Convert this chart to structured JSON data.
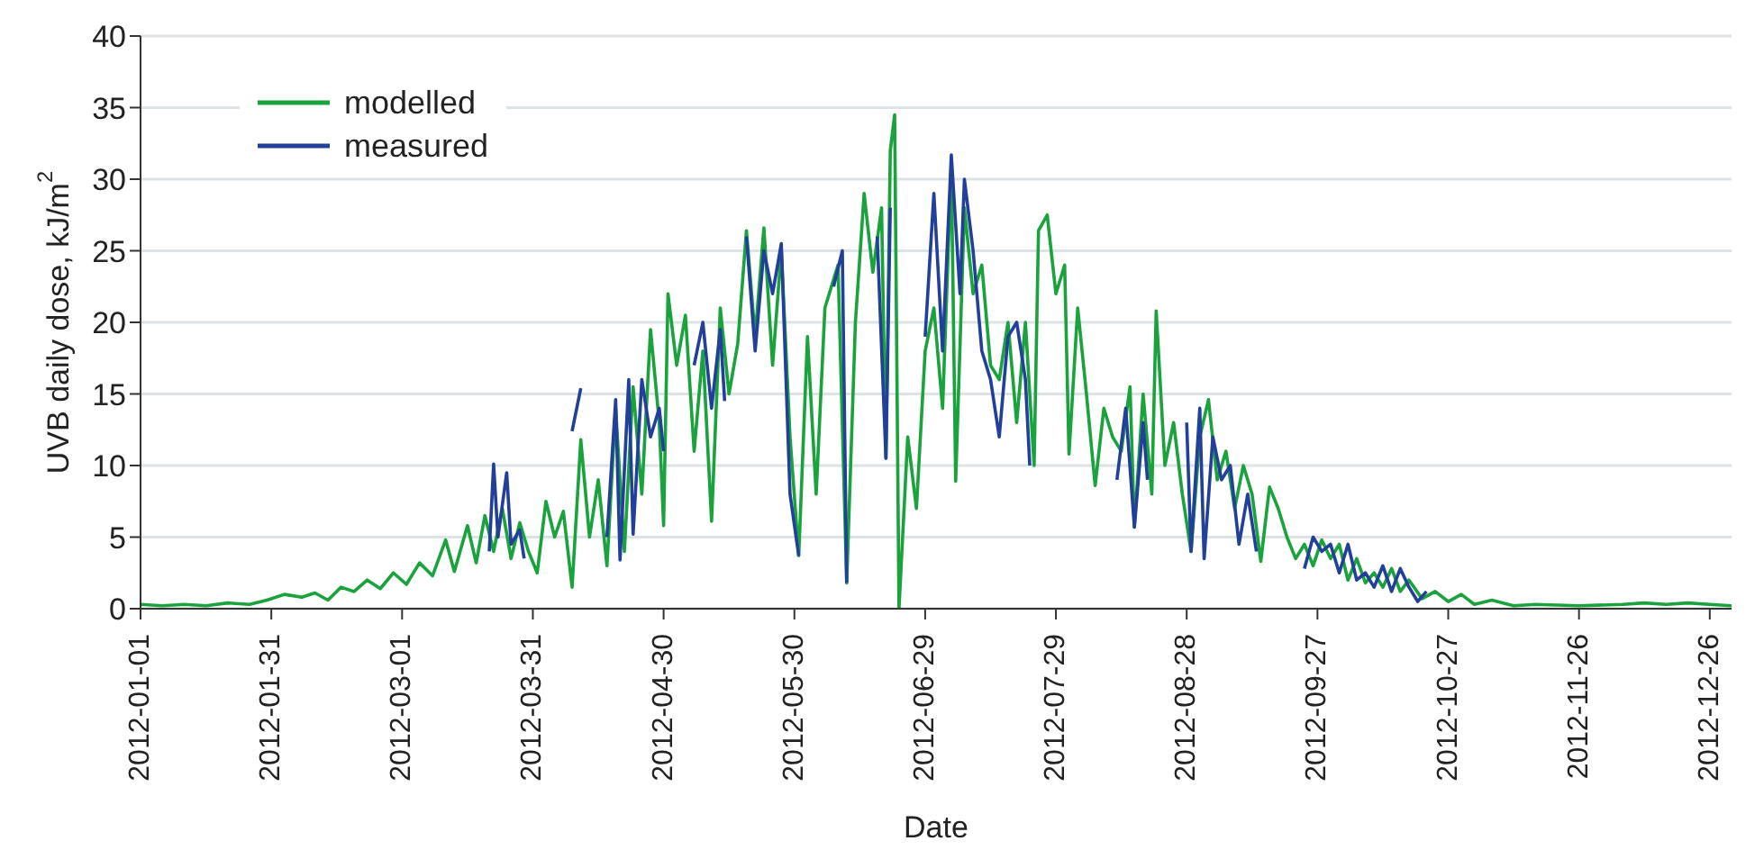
{
  "chart_data": {
    "type": "line",
    "xlabel": "Date",
    "ylabel": "UVB daily dose, kJ/m$^{2}$",
    "xlim": [
      "2012-01-01",
      "2012-12-31"
    ],
    "xticks": [
      "2012-01-01",
      "2012-01-31",
      "2012-03-01",
      "2012-03-31",
      "2012-04-30",
      "2012-05-30",
      "2012-06-29",
      "2012-07-29",
      "2012-08-28",
      "2012-09-27",
      "2012-10-27",
      "2012-11-26",
      "2012-12-26"
    ],
    "ylim": [
      0,
      40
    ],
    "yticks": [
      0,
      5,
      10,
      15,
      20,
      25,
      30,
      35,
      40
    ],
    "grid": "y",
    "legend": "top left",
    "marker": "none",
    "line_style": "solid",
    "series": [
      {
        "name": "modelled",
        "color": "#1aa33c",
        "x": [
          "2012-01-01",
          "2012-01-06",
          "2012-01-11",
          "2012-01-16",
          "2012-01-21",
          "2012-01-26",
          "2012-01-30",
          "2012-02-03",
          "2012-02-07",
          "2012-02-10",
          "2012-02-13",
          "2012-02-16",
          "2012-02-19",
          "2012-02-22",
          "2012-02-25",
          "2012-02-28",
          "2012-03-02",
          "2012-03-05",
          "2012-03-08",
          "2012-03-11",
          "2012-03-13",
          "2012-03-16",
          "2012-03-18",
          "2012-03-20",
          "2012-03-22",
          "2012-03-24",
          "2012-03-26",
          "2012-03-28",
          "2012-03-30",
          "2012-04-01",
          "2012-04-03",
          "2012-04-05",
          "2012-04-07",
          "2012-04-09",
          "2012-04-11",
          "2012-04-13",
          "2012-04-15",
          "2012-04-17",
          "2012-04-19",
          "2012-04-21",
          "2012-04-23",
          "2012-04-25",
          "2012-04-27",
          "2012-04-29",
          "2012-04-30",
          "2012-05-01",
          "2012-05-03",
          "2012-05-05",
          "2012-05-07",
          "2012-05-09",
          "2012-05-11",
          "2012-05-13",
          "2012-05-15",
          "2012-05-17",
          "2012-05-19",
          "2012-05-21",
          "2012-05-23",
          "2012-05-25",
          "2012-05-27",
          "2012-05-29",
          "2012-05-31",
          "2012-06-02",
          "2012-06-04",
          "2012-06-06",
          "2012-06-08",
          "2012-06-09",
          "2012-06-11",
          "2012-06-13",
          "2012-06-15",
          "2012-06-17",
          "2012-06-19",
          "2012-06-20",
          "2012-06-21",
          "2012-06-22",
          "2012-06-23",
          "2012-06-25",
          "2012-06-27",
          "2012-06-29",
          "2012-07-01",
          "2012-07-03",
          "2012-07-05",
          "2012-07-06",
          "2012-07-08",
          "2012-07-10",
          "2012-07-12",
          "2012-07-14",
          "2012-07-16",
          "2012-07-18",
          "2012-07-20",
          "2012-07-22",
          "2012-07-24",
          "2012-07-25",
          "2012-07-27",
          "2012-07-29",
          "2012-07-31",
          "2012-08-01",
          "2012-08-03",
          "2012-08-05",
          "2012-08-07",
          "2012-08-09",
          "2012-08-11",
          "2012-08-13",
          "2012-08-15",
          "2012-08-16",
          "2012-08-18",
          "2012-08-20",
          "2012-08-21",
          "2012-08-23",
          "2012-08-25",
          "2012-08-27",
          "2012-08-29",
          "2012-08-31",
          "2012-09-02",
          "2012-09-04",
          "2012-09-06",
          "2012-09-08",
          "2012-09-10",
          "2012-09-12",
          "2012-09-14",
          "2012-09-16",
          "2012-09-18",
          "2012-09-20",
          "2012-09-22",
          "2012-09-24",
          "2012-09-26",
          "2012-09-28",
          "2012-09-30",
          "2012-10-02",
          "2012-10-04",
          "2012-10-06",
          "2012-10-08",
          "2012-10-10",
          "2012-10-12",
          "2012-10-14",
          "2012-10-16",
          "2012-10-18",
          "2012-10-21",
          "2012-10-24",
          "2012-10-27",
          "2012-10-30",
          "2012-11-02",
          "2012-11-06",
          "2012-11-11",
          "2012-11-16",
          "2012-11-26",
          "2012-12-06",
          "2012-12-11",
          "2012-12-16",
          "2012-12-21",
          "2012-12-26",
          "2012-12-31"
        ],
        "values": [
          0.3,
          0.2,
          0.3,
          0.2,
          0.4,
          0.3,
          0.6,
          1.0,
          0.8,
          1.1,
          0.6,
          1.5,
          1.2,
          2.0,
          1.4,
          2.5,
          1.7,
          3.2,
          2.3,
          4.8,
          2.6,
          5.8,
          3.2,
          6.5,
          4.0,
          7.0,
          3.5,
          6.0,
          4.0,
          2.5,
          7.5,
          5.0,
          6.8,
          1.5,
          11.8,
          5.0,
          9.0,
          3.0,
          14.0,
          4.0,
          15.5,
          8.0,
          19.5,
          13.0,
          5.8,
          22.0,
          17.0,
          20.5,
          11.0,
          18.0,
          6.1,
          21.0,
          15.0,
          18.5,
          26.4,
          19.0,
          26.6,
          17.0,
          25.0,
          12.0,
          3.7,
          19.0,
          8.0,
          21.0,
          23.0,
          24.0,
          1.8,
          20.0,
          29.0,
          23.5,
          28.0,
          10.5,
          32.0,
          34.5,
          0,
          12.0,
          7.0,
          18.0,
          21.0,
          14.0,
          31.0,
          8.9,
          28.0,
          22.0,
          24.0,
          17.0,
          16.0,
          20.0,
          13.0,
          20.0,
          10.0,
          26.4,
          27.5,
          22.0,
          24.0,
          10.8,
          21.0,
          15.0,
          8.6,
          14.0,
          12.0,
          11.0,
          15.5,
          5.7,
          15.0,
          8.0,
          20.8,
          10.0,
          13.0,
          8.0,
          4.0,
          12.0,
          14.6,
          9.0,
          11.0,
          7.0,
          10.0,
          8.0,
          3.3,
          8.5,
          7.0,
          5.0,
          3.5,
          4.5,
          3.0,
          4.8,
          3.5,
          4.5,
          2.0,
          3.5,
          1.8,
          2.5,
          1.5,
          2.8,
          1.2,
          2.0,
          0.7,
          1.2,
          0.5,
          1.0,
          0.3,
          0.6,
          0.2,
          0.3,
          0.2,
          0.3,
          0.4,
          0.3,
          0.4,
          0.3,
          0.2
        ]
      },
      {
        "name": "measured",
        "color": "#22409a",
        "x": [
          "2012-03-21",
          "2012-03-22",
          "2012-03-23",
          "2012-03-25",
          "2012-03-26",
          "2012-03-28",
          "2012-03-29",
          "2012-04-05",
          "2012-04-09",
          "2012-04-11",
          "2012-04-14",
          "2012-04-17",
          "2012-04-19",
          "2012-04-20",
          "2012-04-22",
          "2012-04-23",
          "2012-04-25",
          "2012-04-27",
          "2012-04-29",
          "2012-04-30",
          "2012-05-06",
          "2012-05-07",
          "2012-05-09",
          "2012-05-11",
          "2012-05-13",
          "2012-05-14",
          "2012-05-17",
          "2012-05-19",
          "2012-05-21",
          "2012-05-23",
          "2012-05-25",
          "2012-05-27",
          "2012-05-29",
          "2012-05-31",
          "2012-06-03",
          "2012-06-08",
          "2012-06-10",
          "2012-06-11",
          "2012-06-14",
          "2012-06-18",
          "2012-06-20",
          "2012-06-21",
          "2012-06-25",
          "2012-06-29",
          "2012-07-01",
          "2012-07-03",
          "2012-07-05",
          "2012-07-07",
          "2012-07-08",
          "2012-07-10",
          "2012-07-12",
          "2012-07-14",
          "2012-07-16",
          "2012-07-18",
          "2012-07-20",
          "2012-07-22",
          "2012-07-23",
          "2012-08-03",
          "2012-08-12",
          "2012-08-14",
          "2012-08-16",
          "2012-08-18",
          "2012-08-19",
          "2012-08-24",
          "2012-08-28",
          "2012-08-29",
          "2012-08-31",
          "2012-09-01",
          "2012-09-03",
          "2012-09-05",
          "2012-09-07",
          "2012-09-09",
          "2012-09-11",
          "2012-09-13",
          "2012-09-17",
          "2012-09-24",
          "2012-09-26",
          "2012-09-28",
          "2012-09-30",
          "2012-10-02",
          "2012-10-04",
          "2012-10-06",
          "2012-10-08",
          "2012-10-10",
          "2012-10-12",
          "2012-10-14",
          "2012-10-16",
          "2012-10-18",
          "2012-10-20",
          "2012-10-22"
        ],
        "values": [
          4.0,
          10.1,
          5.0,
          9.5,
          4.5,
          5.5,
          3.5,
          null,
          12.4,
          15.4,
          null,
          5.0,
          14.6,
          3.4,
          16.0,
          5.2,
          16.0,
          12.0,
          14.0,
          11.0,
          null,
          17.0,
          20.0,
          14.0,
          19.5,
          14.5,
          null,
          26.0,
          18.0,
          25.0,
          22.0,
          25.5,
          8.0,
          3.7,
          null,
          22.5,
          25.0,
          1.8,
          null,
          26.0,
          10.5,
          28.0,
          null,
          19.0,
          29.0,
          18.0,
          31.7,
          22.0,
          30.0,
          25.0,
          18.0,
          16.0,
          12.0,
          19.0,
          20.0,
          16.0,
          10.0,
          null,
          9.0,
          14.0,
          5.7,
          13.0,
          9.0,
          null,
          13.0,
          4.0,
          14.0,
          3.5,
          12.0,
          9.0,
          10.0,
          4.5,
          8.0,
          4.0,
          null,
          2.8,
          5.0,
          4.0,
          4.5,
          2.5,
          4.5,
          2.0,
          2.5,
          1.5,
          3.0,
          1.2,
          2.8,
          1.5,
          0.5,
          1.2
        ]
      }
    ]
  }
}
